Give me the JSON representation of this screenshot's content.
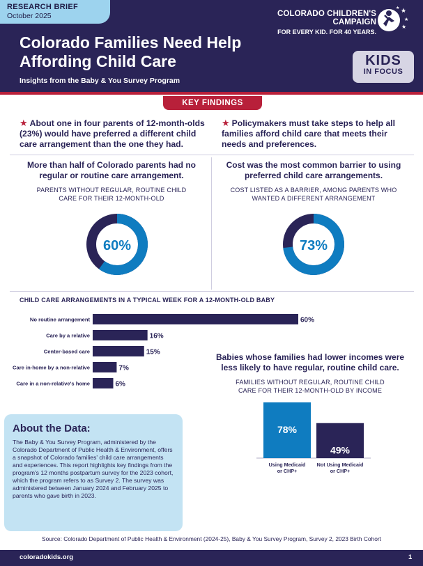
{
  "header": {
    "doc_type": "RESEARCH BRIEF",
    "date": "October 2025",
    "org_name": "COLORADO CHILDREN'S CAMPAIGN",
    "org_tagline": "FOR EVERY KID. FOR 40 YEARS.",
    "title": "Colorado Families Need Help Affording Child Care",
    "subtitle": "Insights from the Baby & You Survey Program",
    "kids_logo_l1": "KIDS",
    "kids_logo_l2": "IN FOCUS"
  },
  "key_findings": {
    "label": "KEY FINDINGS",
    "finding_1": "About one in four parents of 12-month-olds (23%) would have preferred a different child care arrangement than the one they had.",
    "finding_2": "Policymakers must take steps to help all families afford child care that meets their needs and preferences."
  },
  "panel_left": {
    "heading": "More than half of Colorado parents had no regular or routine care arrangement.",
    "subheading": "PARENTS WITHOUT REGULAR, ROUTINE CHILD CARE FOR THEIR 12-MONTH-OLD",
    "value_label": "60%",
    "value": 60
  },
  "panel_right": {
    "heading": "Cost was the most common barrier to using preferred child care arrangements.",
    "subheading": "COST LISTED AS A BARRIER, AMONG PARENTS WHO WANTED A DIFFERENT ARRANGEMENT",
    "value_label": "73%",
    "value": 73
  },
  "arrangements_title": "CHILD CARE ARRANGEMENTS IN A TYPICAL WEEK FOR A 12-MONTH-OLD BABY",
  "income_panel": {
    "heading": "Babies whose families had lower incomes were less likely to have regular, routine child care.",
    "subheading": "FAMILIES WITHOUT REGULAR, ROUTINE CHILD CARE FOR THEIR 12-MONTH-OLD BY INCOME"
  },
  "chart_data": [
    {
      "type": "pie",
      "title": "PARENTS WITHOUT REGULAR, ROUTINE CHILD CARE FOR THEIR 12-MONTH-OLD",
      "values": [
        60,
        40
      ],
      "data_label": "60%"
    },
    {
      "type": "pie",
      "title": "COST LISTED AS A BARRIER, AMONG PARENTS WHO WANTED A DIFFERENT ARRANGEMENT",
      "values": [
        73,
        27
      ],
      "data_label": "73%"
    },
    {
      "type": "bar",
      "orientation": "horizontal",
      "title": "CHILD CARE ARRANGEMENTS IN A TYPICAL WEEK FOR A 12-MONTH-OLD BABY",
      "categories": [
        "No routine arrangement",
        "Care by a relative",
        "Center-based care",
        "Care in-home by a non-relative",
        "Care in a non-relative's home"
      ],
      "values": [
        60,
        16,
        15,
        7,
        6
      ],
      "labels": [
        "60%",
        "16%",
        "15%",
        "7%",
        "6%"
      ],
      "xlim": [
        0,
        60
      ]
    },
    {
      "type": "bar",
      "title": "FAMILIES WITHOUT REGULAR, ROUTINE CHILD CARE FOR THEIR 12-MONTH-OLD BY INCOME",
      "categories": [
        "Using Medicaid or CHP+",
        "Not Using Medicaid or CHP+"
      ],
      "values": [
        78,
        49
      ],
      "labels": [
        "78%",
        "49%"
      ],
      "ylim": [
        0,
        78
      ]
    }
  ],
  "about": {
    "heading": "About the Data:",
    "body": "The Baby & You Survey Program, administered by the Colorado Department of Public Health & Environment, offers a snapshot of Colorado families' child care arrangements and experiences. This report highlights key findings from the program's 12 months postpartum survey for the 2023 cohort, which the program refers to as Survey 2. The survey was administered between January 2024 and February 2025 to parents who gave birth in 2023."
  },
  "source": "Source: Colorado Department of Public Health & Environment (2024-25), Baby & You Survey Program, Survey 2, 2023 Birth Cohort",
  "footer": {
    "site": "coloradokids.org",
    "page": "1"
  },
  "colors": {
    "navy": "#2a2457",
    "blue": "#0f7cc0",
    "red": "#b8203a",
    "light_blue": "#c3e3f3",
    "tab_blue": "#9dd3ee"
  }
}
